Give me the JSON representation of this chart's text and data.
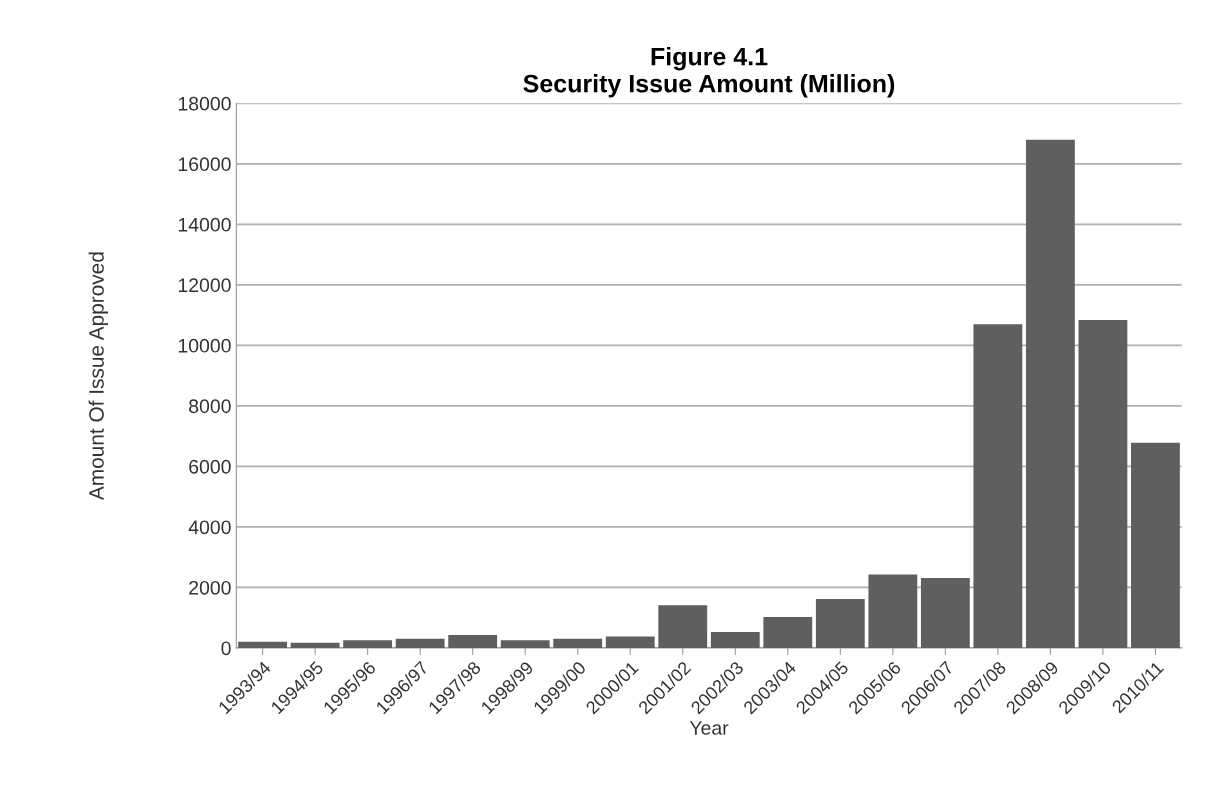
{
  "chart_data": {
    "type": "bar",
    "title": "Figure 4.1\nSecurity Issue Amount (Million)",
    "xlabel": "Year",
    "ylabel": "Amount Of Issue Approved",
    "categories": [
      "1993/94",
      "1994/95",
      "1995/96",
      "1996/97",
      "1997/98",
      "1998/99",
      "1999/00",
      "2000/01",
      "2001/02",
      "2002/03",
      "2003/04",
      "2004/05",
      "2005/06",
      "2006/07",
      "2007/08",
      "2008/09",
      "2009/10",
      "2010/11"
    ],
    "values": [
      200,
      170,
      250,
      300,
      430,
      250,
      300,
      380,
      1410,
      530,
      1020,
      1620,
      2430,
      2310,
      10700,
      16800,
      10840,
      6780
    ],
    "color": "#5f5f5f",
    "ylim": [
      0,
      18000
    ],
    "yticks": [
      0,
      2000,
      4000,
      6000,
      8000,
      10000,
      12000,
      14000,
      16000,
      18000
    ],
    "grid": "y"
  }
}
